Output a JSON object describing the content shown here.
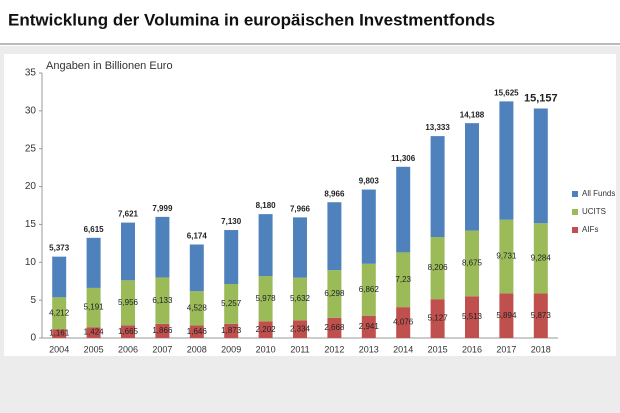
{
  "chart_data": {
    "type": "stacked-bar",
    "title": "Entwicklung der Volumina in europäischen Investmentfonds",
    "y_axis_label": "Angaben in Billionen Euro",
    "categories": [
      "2004",
      "2005",
      "2006",
      "2007",
      "2008",
      "2009",
      "2010",
      "2011",
      "2012",
      "2013",
      "2014",
      "2015",
      "2016",
      "2017",
      "2018"
    ],
    "series": [
      {
        "name": "AIFs",
        "color": "#c0504d",
        "values": [
          1.161,
          1.424,
          1.665,
          1.866,
          1.646,
          1.873,
          2.202,
          2.334,
          2.668,
          2.941,
          4.076,
          5.127,
          5.513,
          5.894,
          5.873
        ],
        "value_labels": [
          "1,161",
          "1,424",
          "1,665",
          "1,866",
          "1,646",
          "1,873",
          "2,202",
          "2,334",
          "2,668",
          "2,941",
          "4,076",
          "5,127",
          "5,513",
          "5,894",
          "5,873"
        ]
      },
      {
        "name": "UCITS",
        "color": "#9bbb59",
        "values": [
          4.212,
          5.191,
          5.956,
          6.133,
          4.528,
          5.257,
          5.978,
          5.632,
          6.298,
          6.862,
          7.23,
          8.206,
          8.675,
          9.731,
          9.284
        ],
        "value_labels": [
          "4,212",
          "5,191",
          "5,956",
          "6,133",
          "4,528",
          "5,257",
          "5,978",
          "5,632",
          "6,298",
          "6,862",
          "7,23",
          "8,206",
          "8,675",
          "9,731",
          "9,284"
        ]
      },
      {
        "name": "All Funds",
        "color": "#4f81bd",
        "values": [
          5.373,
          6.615,
          7.621,
          7.999,
          6.174,
          7.13,
          8.18,
          7.966,
          8.966,
          9.803,
          11.306,
          13.333,
          14.188,
          15.625,
          15.157
        ],
        "value_labels": [
          "5,373",
          "6,615",
          "7,621",
          "7,999",
          "6,174",
          "7,130",
          "8,180",
          "7,966",
          "8,966",
          "9,803",
          "11,306",
          "13,333",
          "14,188",
          "15,625",
          "15,157"
        ]
      }
    ],
    "ylim": [
      0,
      35
    ],
    "yticks": [
      0,
      5,
      10,
      15,
      20,
      25,
      30,
      35
    ],
    "grid": false,
    "legend": "right"
  }
}
